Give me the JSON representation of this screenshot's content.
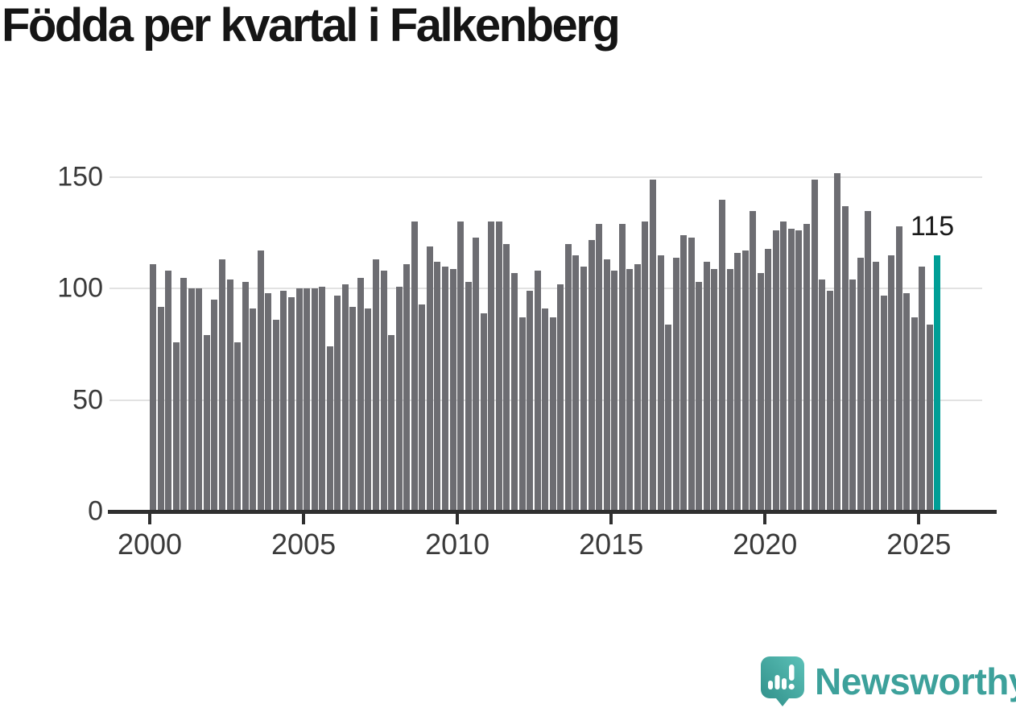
{
  "title": "Födda per kvartal i Falkenberg",
  "annotation": {
    "last_value_label": "115"
  },
  "footer": {
    "brand": "Newsworthy",
    "logo_icon": "newsworthy-speech-bubble-bar-chart-icon"
  },
  "colors": {
    "bar": "#6d6d72",
    "highlight": "#009e96",
    "axis": "#2f2f2f",
    "grid": "#e2e2e2",
    "title_text": "#151515",
    "tick_text": "#3a3a3a",
    "brand_teal": "#3da19b"
  },
  "chart_data": {
    "type": "bar",
    "title": "Födda per kvartal i Falkenberg",
    "xlabel": "",
    "ylabel": "",
    "x_tick_labels": [
      "2000",
      "2005",
      "2010",
      "2015",
      "2020",
      "2025"
    ],
    "y_tick_labels": [
      "0",
      "50",
      "100",
      "150"
    ],
    "y_ticks": [
      0,
      50,
      100,
      150
    ],
    "ylim": [
      0,
      160
    ],
    "grid": "horizontal",
    "legend": "none",
    "start_period": "2000-Q1",
    "end_period": "2025-Q3",
    "periods_per_year": 4,
    "highlight_last": true,
    "last_value": 115,
    "values": [
      111,
      92,
      108,
      76,
      105,
      100,
      100,
      79,
      95,
      113,
      104,
      76,
      103,
      91,
      117,
      98,
      86,
      99,
      96,
      100,
      100,
      100,
      101,
      74,
      97,
      102,
      92,
      105,
      91,
      113,
      108,
      79,
      101,
      111,
      130,
      93,
      119,
      112,
      110,
      109,
      130,
      103,
      123,
      89,
      130,
      130,
      120,
      107,
      87,
      99,
      108,
      91,
      87,
      102,
      120,
      115,
      110,
      122,
      129,
      113,
      108,
      129,
      109,
      111,
      130,
      149,
      115,
      84,
      114,
      124,
      123,
      103,
      112,
      109,
      140,
      109,
      116,
      117,
      135,
      107,
      118,
      126,
      130,
      127,
      126,
      129,
      149,
      104,
      99,
      152,
      137,
      104,
      114,
      135,
      112,
      97,
      115,
      128,
      98,
      87,
      110,
      84,
      115
    ]
  }
}
